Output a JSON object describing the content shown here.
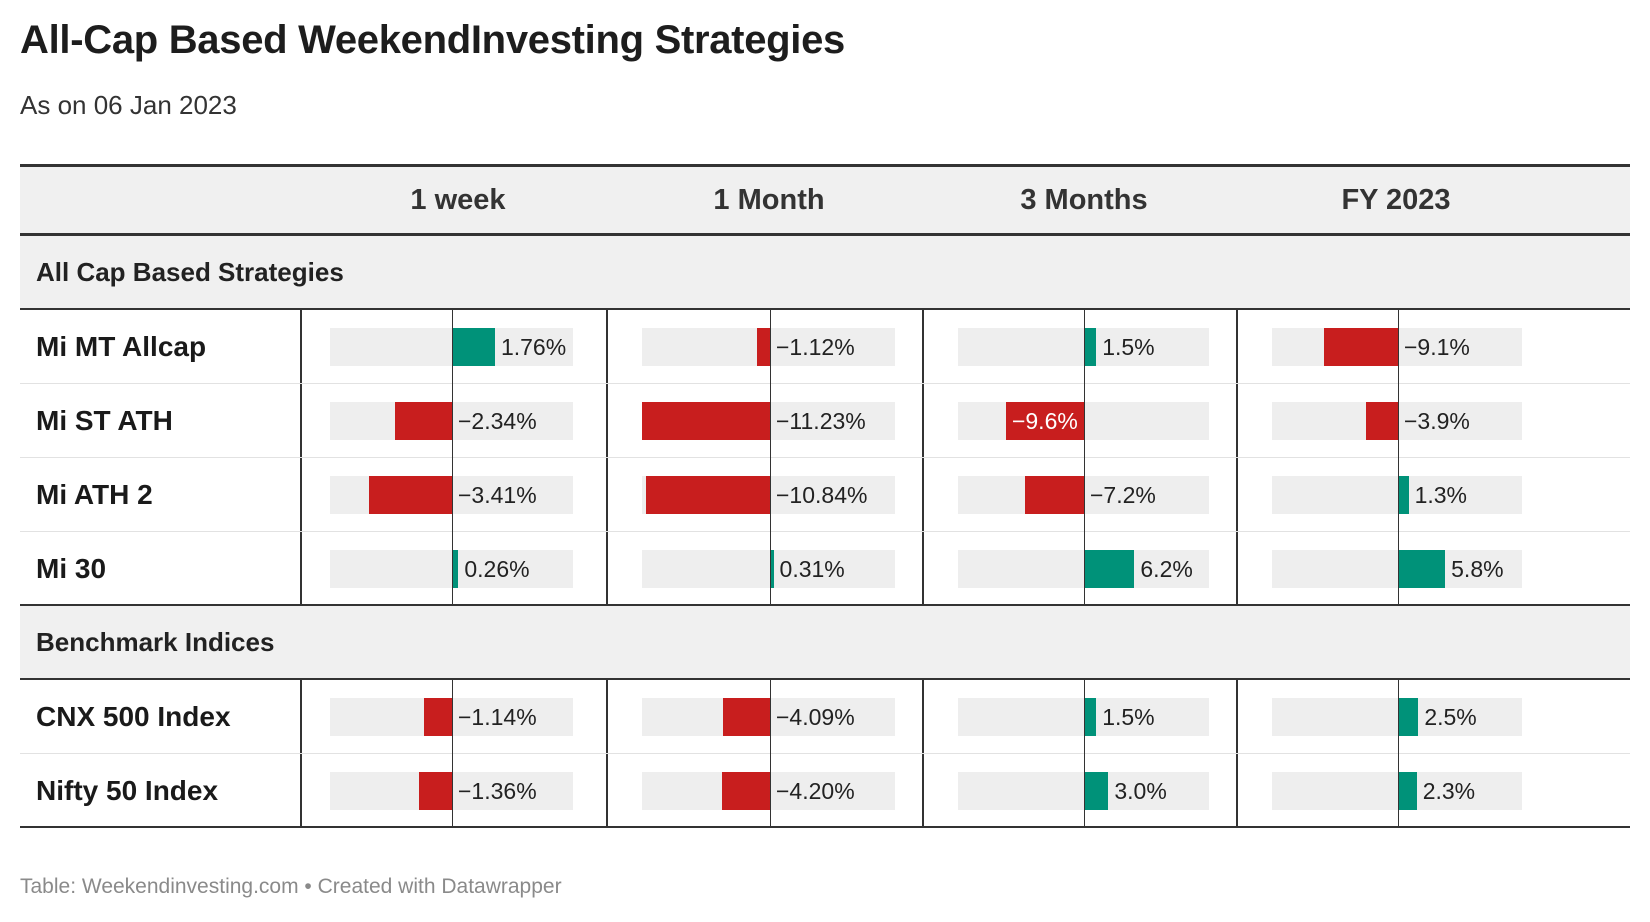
{
  "title": "All-Cap Based WeekendInvesting Strategies",
  "subtitle": "As on 06 Jan 2023",
  "footer": "Table: Weekendinvesting.com • Created with Datawrapper",
  "colors": {
    "positive": "#009279",
    "negative": "#c81e1e",
    "track": "#eeeeee",
    "header_bg": "#f0f0f0"
  },
  "chart_data": {
    "type": "table",
    "columns": [
      "1 week",
      "1 Month",
      "3 Months",
      "FY 2023"
    ],
    "sections": [
      {
        "label": "All Cap Based Strategies",
        "rows": [
          {
            "name": "Mi MT Allcap",
            "values": [
              1.76,
              -1.12,
              1.5,
              -9.1
            ],
            "labels": [
              "1.76%",
              "−1.12%",
              "1.5%",
              "−9.1%"
            ]
          },
          {
            "name": "Mi ST ATH",
            "values": [
              -2.34,
              -11.23,
              -9.6,
              -3.9
            ],
            "labels": [
              "−2.34%",
              "−11.23%",
              "−9.6%",
              "−3.9%"
            ]
          },
          {
            "name": "Mi ATH 2",
            "values": [
              -3.41,
              -10.84,
              -7.2,
              1.3
            ],
            "labels": [
              "−3.41%",
              "−10.84%",
              "−7.2%",
              "1.3%"
            ]
          },
          {
            "name": "Mi 30",
            "values": [
              0.26,
              0.31,
              6.2,
              5.8
            ],
            "labels": [
              "0.26%",
              "0.31%",
              "6.2%",
              "5.8%"
            ]
          }
        ]
      },
      {
        "label": "Benchmark Indices",
        "rows": [
          {
            "name": "CNX 500 Index",
            "values": [
              -1.14,
              -4.09,
              1.5,
              2.5
            ],
            "labels": [
              "−1.14%",
              "−4.09%",
              "1.5%",
              "2.5%"
            ]
          },
          {
            "name": "Nifty 50 Index",
            "values": [
              -1.36,
              -4.2,
              3.0,
              2.3
            ],
            "labels": [
              "−1.36%",
              "−4.20%",
              "3.0%",
              "2.3%"
            ]
          }
        ]
      }
    ],
    "column_ranges": [
      [
        -5.0,
        5.0
      ],
      [
        -11.23,
        14.6
      ],
      [
        -15.5,
        15.5
      ],
      [
        -15.5,
        15.5
      ]
    ]
  }
}
